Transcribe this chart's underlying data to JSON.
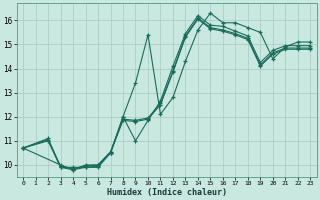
{
  "xlabel": "Humidex (Indice chaleur)",
  "bg_color": "#c8e8e0",
  "line_color": "#1a6b5a",
  "grid_color": "#a8c8c0",
  "xlim": [
    -0.5,
    23.5
  ],
  "ylim": [
    9.5,
    16.7
  ],
  "xticks": [
    0,
    1,
    2,
    3,
    4,
    5,
    6,
    7,
    8,
    9,
    10,
    11,
    12,
    13,
    14,
    15,
    16,
    17,
    18,
    19,
    20,
    21,
    22,
    23
  ],
  "yticks": [
    10,
    11,
    12,
    13,
    14,
    15,
    16
  ],
  "series": [
    {
      "x": [
        0,
        2,
        3,
        4,
        5,
        6,
        7,
        8,
        9,
        10,
        11,
        12,
        13,
        14,
        15,
        16,
        17,
        18,
        19,
        20,
        21,
        22,
        23
      ],
      "y": [
        10.7,
        11.1,
        9.9,
        9.9,
        9.9,
        9.9,
        10.5,
        12.0,
        13.4,
        15.4,
        12.1,
        12.8,
        14.3,
        15.6,
        16.3,
        15.9,
        15.9,
        15.7,
        15.5,
        14.4,
        14.9,
        15.1,
        15.1
      ]
    },
    {
      "x": [
        0,
        3,
        4,
        5,
        6,
        7,
        8,
        9,
        10,
        11,
        12,
        13,
        14,
        15,
        16,
        17,
        18,
        19,
        20,
        21,
        22,
        23
      ],
      "y": [
        10.7,
        10.0,
        9.8,
        10.0,
        10.0,
        10.5,
        12.0,
        11.0,
        11.85,
        12.65,
        14.1,
        15.45,
        16.2,
        15.8,
        15.75,
        15.55,
        15.35,
        14.25,
        14.75,
        14.95,
        14.95,
        14.95
      ]
    },
    {
      "x": [
        0,
        2,
        3,
        4,
        5,
        6,
        7,
        8,
        9,
        10,
        11,
        12,
        13,
        14,
        15,
        16,
        17,
        18,
        19,
        20,
        21,
        22,
        23
      ],
      "y": [
        10.7,
        11.05,
        9.95,
        9.85,
        9.95,
        10.0,
        10.55,
        11.9,
        11.85,
        11.95,
        12.55,
        13.9,
        15.35,
        16.1,
        15.7,
        15.6,
        15.45,
        15.25,
        14.15,
        14.65,
        14.85,
        14.85,
        14.85
      ]
    },
    {
      "x": [
        0,
        2,
        3,
        4,
        5,
        6,
        7,
        8,
        9,
        10,
        11,
        12,
        13,
        14,
        15,
        16,
        17,
        18,
        19,
        20,
        21,
        22,
        23
      ],
      "y": [
        10.7,
        11.0,
        9.9,
        9.8,
        9.9,
        9.95,
        10.5,
        11.85,
        11.8,
        11.9,
        12.5,
        13.85,
        15.3,
        16.05,
        15.65,
        15.55,
        15.4,
        15.2,
        14.1,
        14.6,
        14.8,
        14.8,
        14.8
      ]
    }
  ]
}
